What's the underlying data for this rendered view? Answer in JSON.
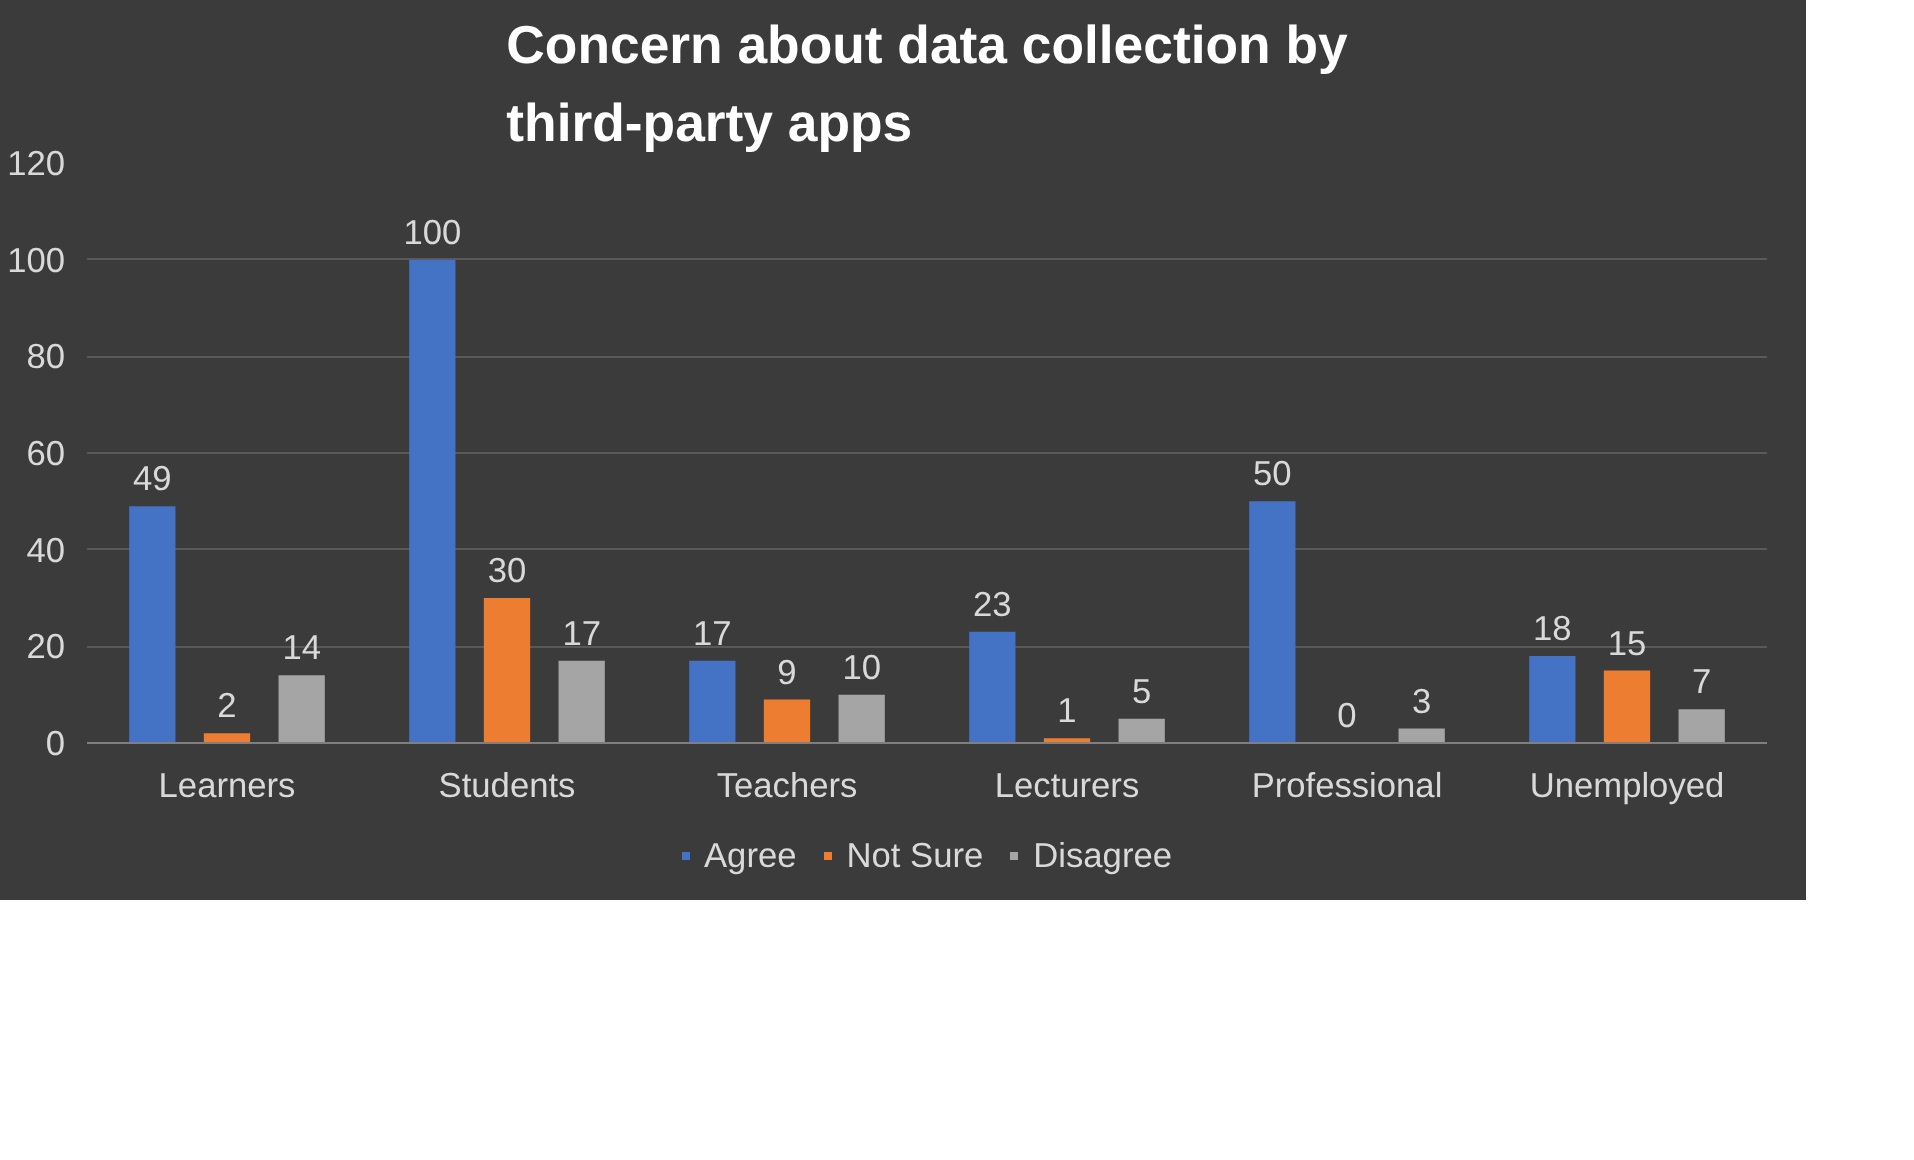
{
  "chart_data": {
    "type": "bar",
    "title": "Concern about data collection by third-party apps",
    "categories": [
      "Learners",
      "Students",
      "Teachers",
      "Lecturers",
      "Professional",
      "Unemployed"
    ],
    "series": [
      {
        "name": "Agree",
        "color": "#4472c4",
        "values": [
          49,
          100,
          17,
          23,
          50,
          18
        ]
      },
      {
        "name": "Not Sure",
        "color": "#ed7d31",
        "values": [
          2,
          30,
          9,
          1,
          0,
          15
        ]
      },
      {
        "name": "Disagree",
        "color": "#a5a5a5",
        "values": [
          14,
          17,
          10,
          5,
          3,
          7
        ]
      }
    ],
    "ylim": [
      0,
      120
    ],
    "yticks": [
      0,
      20,
      40,
      60,
      80,
      100,
      120
    ],
    "grid": "y",
    "legend": "bottom",
    "data_labels": true
  }
}
